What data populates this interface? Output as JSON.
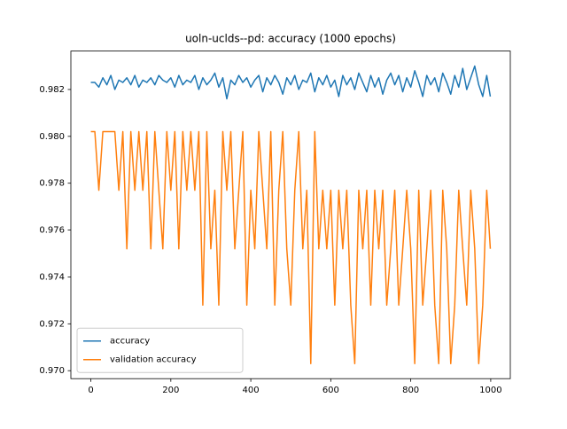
{
  "chart_data": {
    "type": "line",
    "title": "uoln-uclds--pd: accuracy (1000 epochs)",
    "x": [
      0,
      10,
      20,
      30,
      40,
      50,
      60,
      70,
      80,
      90,
      100,
      110,
      120,
      130,
      140,
      150,
      160,
      170,
      180,
      190,
      200,
      210,
      220,
      230,
      240,
      250,
      260,
      270,
      280,
      290,
      300,
      310,
      320,
      330,
      340,
      350,
      360,
      370,
      380,
      390,
      400,
      410,
      420,
      430,
      440,
      450,
      460,
      470,
      480,
      490,
      500,
      510,
      520,
      530,
      540,
      550,
      560,
      570,
      580,
      590,
      600,
      610,
      620,
      630,
      640,
      650,
      660,
      670,
      680,
      690,
      700,
      710,
      720,
      730,
      740,
      750,
      760,
      770,
      780,
      790,
      800,
      810,
      820,
      830,
      840,
      850,
      860,
      870,
      880,
      890,
      900,
      910,
      920,
      930,
      940,
      950,
      960,
      970,
      980,
      990,
      999
    ],
    "series": [
      {
        "name": "accuracy",
        "color": "#1f77b4",
        "values": [
          0.9823,
          0.9823,
          0.9821,
          0.9825,
          0.9822,
          0.9826,
          0.982,
          0.9824,
          0.9823,
          0.9825,
          0.9822,
          0.9826,
          0.9821,
          0.9824,
          0.9823,
          0.9825,
          0.9822,
          0.9826,
          0.9824,
          0.9823,
          0.9825,
          0.9821,
          0.9826,
          0.9822,
          0.9824,
          0.9823,
          0.9826,
          0.982,
          0.9825,
          0.9822,
          0.9824,
          0.9827,
          0.9821,
          0.9825,
          0.9816,
          0.9824,
          0.9822,
          0.9826,
          0.9823,
          0.9825,
          0.9821,
          0.9824,
          0.9826,
          0.9819,
          0.9825,
          0.9822,
          0.9826,
          0.9823,
          0.9818,
          0.9825,
          0.9822,
          0.9826,
          0.982,
          0.9824,
          0.9823,
          0.9827,
          0.9819,
          0.9825,
          0.9822,
          0.9826,
          0.9821,
          0.9824,
          0.9817,
          0.9826,
          0.9822,
          0.9825,
          0.982,
          0.9827,
          0.9823,
          0.9819,
          0.9826,
          0.9821,
          0.9825,
          0.9818,
          0.9824,
          0.9827,
          0.9822,
          0.9826,
          0.9819,
          0.9825,
          0.9821,
          0.9828,
          0.9823,
          0.9817,
          0.9826,
          0.9822,
          0.9825,
          0.9819,
          0.9827,
          0.9823,
          0.9818,
          0.9826,
          0.9821,
          0.9829,
          0.982,
          0.9825,
          0.983,
          0.9822,
          0.9817,
          0.9826,
          0.9817
        ]
      },
      {
        "name": "validation accuracy",
        "color": "#ff7f0e",
        "values": [
          0.9802,
          0.9802,
          0.9777,
          0.9802,
          0.9802,
          0.9802,
          0.9802,
          0.9777,
          0.9802,
          0.9752,
          0.9802,
          0.9777,
          0.9802,
          0.9777,
          0.9802,
          0.9752,
          0.9802,
          0.9777,
          0.9752,
          0.9802,
          0.9777,
          0.9802,
          0.9752,
          0.9802,
          0.9777,
          0.9802,
          0.9777,
          0.9802,
          0.9728,
          0.9802,
          0.9752,
          0.9777,
          0.9728,
          0.9802,
          0.9777,
          0.9802,
          0.9752,
          0.9777,
          0.9802,
          0.9728,
          0.9777,
          0.9752,
          0.9802,
          0.9777,
          0.9752,
          0.9802,
          0.9728,
          0.9777,
          0.9802,
          0.9752,
          0.9728,
          0.9777,
          0.9802,
          0.9752,
          0.9777,
          0.9703,
          0.9802,
          0.9752,
          0.9777,
          0.9752,
          0.9777,
          0.9728,
          0.9777,
          0.9752,
          0.9777,
          0.9728,
          0.9703,
          0.9777,
          0.9752,
          0.9777,
          0.9728,
          0.9777,
          0.9752,
          0.9777,
          0.9728,
          0.9752,
          0.9777,
          0.9728,
          0.9752,
          0.9777,
          0.9752,
          0.9703,
          0.9777,
          0.9728,
          0.9752,
          0.9777,
          0.9728,
          0.9703,
          0.9777,
          0.9752,
          0.9703,
          0.9728,
          0.9777,
          0.9752,
          0.9728,
          0.9777,
          0.9752,
          0.9703,
          0.9728,
          0.9777,
          0.9752
        ]
      }
    ],
    "xlim": [
      -49.95,
      1048.95
    ],
    "xticks": [
      0,
      200,
      400,
      600,
      800,
      1000
    ],
    "ylim": [
      0.96966,
      0.98364
    ],
    "yticks": [
      {
        "value": 0.97,
        "label": "0.970"
      },
      0.972,
      0.974,
      0.976,
      0.978,
      {
        "value": 0.98,
        "label": "0.980"
      },
      0.982
    ],
    "legend": "lower left"
  }
}
